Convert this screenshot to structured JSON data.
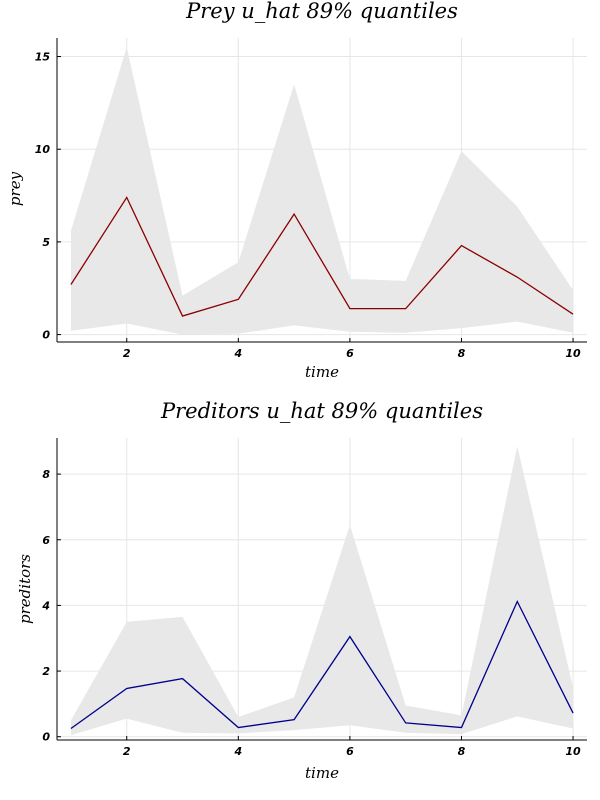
{
  "chart_data": [
    {
      "type": "line",
      "title": "Prey u_hat 89% quantiles",
      "xlabel": "time",
      "ylabel": "prey",
      "x": [
        1,
        2,
        3,
        4,
        5,
        6,
        7,
        8,
        9,
        10
      ],
      "xlim": [
        0.75,
        10.25
      ],
      "ylim": [
        -0.4,
        16
      ],
      "xticks": [
        2,
        4,
        6,
        8,
        10
      ],
      "yticks": [
        0,
        5,
        10,
        15
      ],
      "grid": true,
      "legend": "none",
      "series": [
        {
          "role": "median",
          "color": "#8b0000",
          "values": [
            2.7,
            7.4,
            1.0,
            1.9,
            6.5,
            1.4,
            1.4,
            4.8,
            3.1,
            1.1
          ]
        },
        {
          "role": "lower-quantile",
          "color": "#e8e8e8",
          "values": [
            0.2,
            0.6,
            0.0,
            0.05,
            0.5,
            0.15,
            0.1,
            0.35,
            0.7,
            0.1
          ]
        },
        {
          "role": "upper-quantile",
          "color": "#e8e8e8",
          "values": [
            5.6,
            15.5,
            2.1,
            3.9,
            13.5,
            3.0,
            2.9,
            9.9,
            6.9,
            2.4
          ]
        }
      ]
    },
    {
      "type": "line",
      "title": "Preditors u_hat 89% quantiles",
      "xlabel": "time",
      "ylabel": "preditors",
      "x": [
        1,
        2,
        3,
        4,
        5,
        6,
        7,
        8,
        9,
        10
      ],
      "xlim": [
        0.75,
        10.25
      ],
      "ylim": [
        -0.1,
        9.1
      ],
      "xticks": [
        2,
        4,
        6,
        8,
        10
      ],
      "yticks": [
        0,
        2,
        4,
        6,
        8
      ],
      "grid": true,
      "legend": "none",
      "series": [
        {
          "role": "median",
          "color": "#00008b",
          "values": [
            0.25,
            1.47,
            1.77,
            0.28,
            0.52,
            3.05,
            0.42,
            0.28,
            4.12,
            0.72
          ]
        },
        {
          "role": "lower-quantile",
          "color": "#e8e8e8",
          "values": [
            0.05,
            0.55,
            0.12,
            0.1,
            0.2,
            0.35,
            0.12,
            0.08,
            0.62,
            0.25
          ]
        },
        {
          "role": "upper-quantile",
          "color": "#e8e8e8",
          "values": [
            0.5,
            3.5,
            3.65,
            0.6,
            1.2,
            6.45,
            0.95,
            0.65,
            8.85,
            1.5
          ]
        }
      ]
    }
  ]
}
